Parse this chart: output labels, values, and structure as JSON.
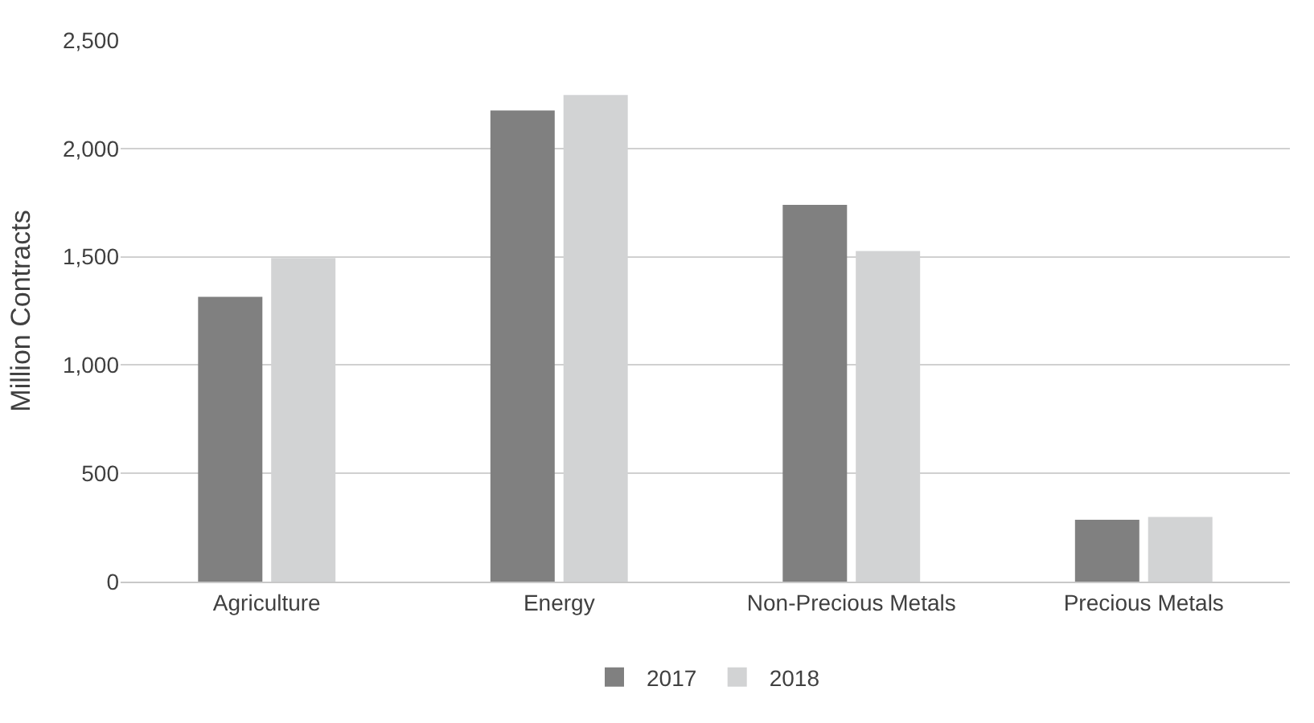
{
  "chart_data": {
    "type": "bar",
    "ylabel": "Million Contracts",
    "categories": [
      "Agriculture",
      "Energy",
      "Non-Precious Metals",
      "Precious Metals"
    ],
    "series": [
      {
        "name": "2017",
        "color": "#808080",
        "values": [
          1315,
          2175,
          1740,
          286
        ]
      },
      {
        "name": "2018",
        "color": "#d2d3d4",
        "values": [
          1494,
          2247,
          1526,
          299
        ]
      }
    ],
    "ylim": [
      0,
      2500
    ],
    "yticks": [
      {
        "value": 0,
        "label": "0"
      },
      {
        "value": 500,
        "label": "500"
      },
      {
        "value": 1000,
        "label": "1,000"
      },
      {
        "value": 1500,
        "label": "1,500"
      },
      {
        "value": 2000,
        "label": "2,000"
      },
      {
        "value": 2500,
        "label": "2,500"
      }
    ],
    "grid": "y",
    "legend": "bottom"
  }
}
